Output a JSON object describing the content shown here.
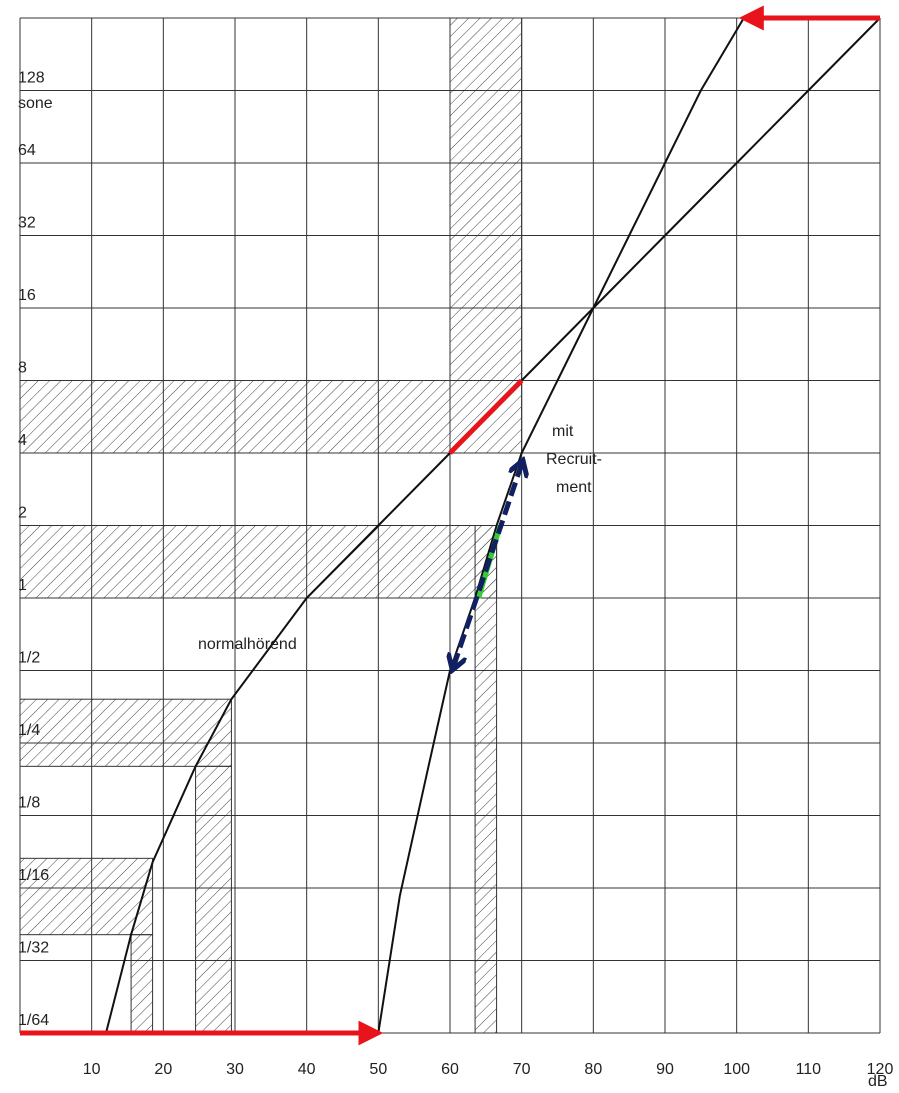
{
  "chart_data": {
    "type": "line",
    "y_axis_label": "sone",
    "x_axis_label": "dB",
    "xlim": [
      0,
      120
    ],
    "xticks": [
      10,
      20,
      30,
      40,
      50,
      60,
      70,
      80,
      90,
      100,
      110,
      120
    ],
    "ylim": [
      0.015625,
      256
    ],
    "ylog": true,
    "ylog_base": 2,
    "yticks": [
      {
        "value": 0.015625,
        "label": "1/64"
      },
      {
        "value": 0.03125,
        "label": "1/32"
      },
      {
        "value": 0.0625,
        "label": "1/16"
      },
      {
        "value": 0.125,
        "label": "1/8"
      },
      {
        "value": 0.25,
        "label": "1/4"
      },
      {
        "value": 0.5,
        "label": "1/2"
      },
      1,
      2,
      4,
      8,
      16,
      32,
      64,
      128
    ],
    "grid": true,
    "series": [
      {
        "name": "normalhörend",
        "color": "#111111",
        "x": [
          12,
          15.5,
          18.5,
          24.5,
          29.5,
          40,
          50,
          60,
          70,
          80,
          90,
          100,
          110,
          120
        ],
        "values": [
          0.015625,
          0.04,
          0.08,
          0.2,
          0.38,
          1,
          2,
          4,
          8,
          16,
          32,
          64,
          128,
          256
        ]
      },
      {
        "name": "mit Recruit-ment",
        "color": "#111111",
        "x": [
          50,
          53,
          57,
          60,
          63.5,
          66.5,
          70,
          75,
          80,
          85,
          90,
          95,
          101
        ],
        "values": [
          0.015625,
          0.058,
          0.2,
          0.5,
          1,
          2,
          4,
          8,
          16,
          32,
          64,
          128,
          256
        ]
      }
    ],
    "hatched_regions": [
      {
        "x": [
          0,
          70
        ],
        "y": [
          4,
          8
        ]
      },
      {
        "x": [
          60,
          70
        ],
        "y": [
          8,
          256
        ]
      },
      {
        "x": [
          0,
          66.5
        ],
        "y": [
          1,
          2
        ]
      },
      {
        "x": [
          63.5,
          66.5
        ],
        "y": [
          0.015625,
          2
        ]
      },
      {
        "x": [
          0,
          29.5
        ],
        "y": [
          0.2,
          0.38
        ]
      },
      {
        "x": [
          24.5,
          29.5
        ],
        "y": [
          0.015625,
          0.2
        ]
      },
      {
        "x": [
          0,
          18.5
        ],
        "y": [
          0.04,
          0.083
        ]
      },
      {
        "x": [
          15.5,
          18.5
        ],
        "y": [
          0.015625,
          0.04
        ]
      }
    ],
    "annotations": [
      {
        "kind": "arrow",
        "color": "#e8141b",
        "x": [
          0,
          50
        ],
        "y": [
          0.015625,
          0.015625
        ]
      },
      {
        "kind": "arrow",
        "color": "#e8141b",
        "x": [
          120,
          101
        ],
        "y": [
          256,
          256
        ]
      },
      {
        "kind": "segment",
        "color": "#e8141b",
        "x": [
          60,
          70
        ],
        "y": [
          4,
          8
        ]
      },
      {
        "kind": "segment",
        "color": "#33cc33",
        "x": [
          64,
          67
        ],
        "y": [
          1,
          2
        ]
      },
      {
        "kind": "double-arrow",
        "color": "#102060",
        "x": [
          60.5,
          70
        ],
        "y": [
          0.52,
          3.6
        ]
      }
    ]
  }
}
